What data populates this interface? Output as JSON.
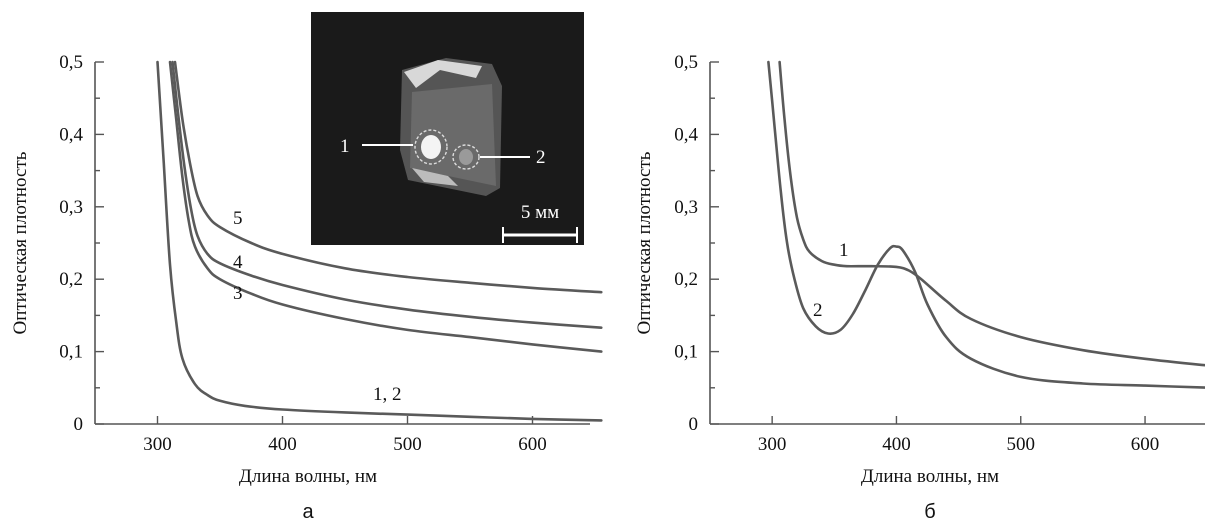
{
  "colors": {
    "curve": "#5a5a5a",
    "axis": "#555555",
    "inset_bg": "#1a1a1a"
  },
  "chart_data": [
    {
      "type": "line",
      "panel_label": "а",
      "xlabel": "Длина волны, нм",
      "ylabel": "Оптическая плотность",
      "xlim": [
        250,
        655
      ],
      "ylim": [
        0,
        0.5
      ],
      "x_ticks": [
        300,
        400,
        500,
        600
      ],
      "y_ticks": [
        {
          "value": 0,
          "label": "0"
        },
        {
          "value": 0.1,
          "label": "0,1"
        },
        {
          "value": 0.2,
          "label": "0,2"
        },
        {
          "value": 0.3,
          "label": "0,3"
        },
        {
          "value": 0.4,
          "label": "0,4"
        },
        {
          "value": 0.5,
          "label": "0,5"
        }
      ],
      "grid": false,
      "series": [
        {
          "name": "1, 2",
          "x": [
            300,
            305,
            310,
            315,
            320,
            330,
            340,
            350,
            370,
            400,
            450,
            500,
            550,
            600,
            655
          ],
          "y": [
            0.5,
            0.36,
            0.22,
            0.14,
            0.09,
            0.055,
            0.04,
            0.032,
            0.025,
            0.02,
            0.016,
            0.013,
            0.01,
            0.007,
            0.005
          ]
        },
        {
          "name": "3",
          "x": [
            310,
            315,
            320,
            325,
            330,
            340,
            350,
            375,
            400,
            450,
            500,
            550,
            600,
            655
          ],
          "y": [
            0.5,
            0.42,
            0.34,
            0.28,
            0.245,
            0.215,
            0.2,
            0.18,
            0.165,
            0.145,
            0.13,
            0.12,
            0.11,
            0.1
          ]
        },
        {
          "name": "4",
          "x": [
            312,
            317,
            322,
            327,
            332,
            340,
            350,
            375,
            400,
            450,
            500,
            550,
            600,
            655
          ],
          "y": [
            0.5,
            0.42,
            0.35,
            0.295,
            0.26,
            0.235,
            0.222,
            0.205,
            0.192,
            0.172,
            0.158,
            0.148,
            0.14,
            0.133
          ]
        },
        {
          "name": "5",
          "x": [
            314,
            320,
            326,
            332,
            340,
            350,
            375,
            400,
            450,
            500,
            550,
            600,
            655
          ],
          "y": [
            0.5,
            0.42,
            0.36,
            0.315,
            0.288,
            0.272,
            0.25,
            0.235,
            0.215,
            0.203,
            0.195,
            0.188,
            0.182
          ]
        }
      ],
      "inset": {
        "labels": [
          "1",
          "2"
        ],
        "scale_bar": "5 мм"
      }
    },
    {
      "type": "line",
      "panel_label": "б",
      "xlabel": "Длина волны, нм",
      "ylabel": "Оптическая плотность",
      "xlim": [
        250,
        655
      ],
      "ylim": [
        0,
        0.5
      ],
      "x_ticks": [
        300,
        400,
        500,
        600
      ],
      "y_ticks": [
        {
          "value": 0,
          "label": "0"
        },
        {
          "value": 0.1,
          "label": "0,1"
        },
        {
          "value": 0.2,
          "label": "0,2"
        },
        {
          "value": 0.3,
          "label": "0,3"
        },
        {
          "value": 0.4,
          "label": "0,4"
        },
        {
          "value": 0.5,
          "label": "0,5"
        }
      ],
      "grid": false,
      "series": [
        {
          "name": "1",
          "x": [
            306,
            310,
            315,
            320,
            325,
            330,
            340,
            350,
            360,
            380,
            400,
            410,
            420,
            440,
            460,
            500,
            550,
            600,
            655
          ],
          "y": [
            0.5,
            0.42,
            0.34,
            0.285,
            0.255,
            0.238,
            0.225,
            0.22,
            0.218,
            0.218,
            0.217,
            0.212,
            0.2,
            0.17,
            0.145,
            0.12,
            0.102,
            0.09,
            0.08
          ]
        },
        {
          "name": "2",
          "x": [
            297,
            302,
            307,
            312,
            318,
            325,
            335,
            345,
            355,
            365,
            375,
            385,
            395,
            400,
            405,
            415,
            425,
            440,
            460,
            500,
            550,
            600,
            655
          ],
          "y": [
            0.5,
            0.41,
            0.32,
            0.25,
            0.2,
            0.16,
            0.135,
            0.125,
            0.13,
            0.152,
            0.185,
            0.22,
            0.243,
            0.245,
            0.24,
            0.21,
            0.165,
            0.12,
            0.09,
            0.065,
            0.056,
            0.053,
            0.05
          ]
        }
      ]
    }
  ]
}
